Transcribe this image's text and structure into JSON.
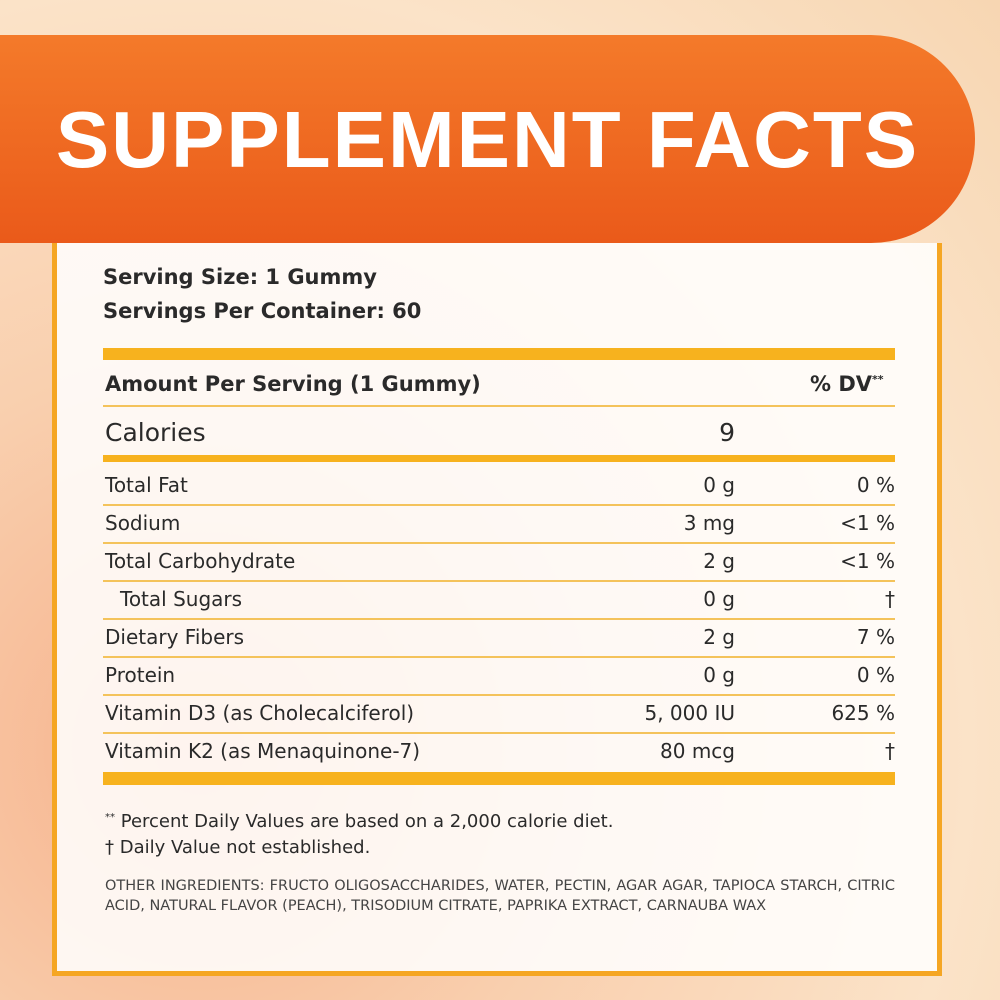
{
  "header": {
    "title": "SUPPLEMENT FACTS"
  },
  "serving": {
    "size": "Serving Size: 1 Gummy",
    "per_container": "Servings Per Container: 60"
  },
  "table": {
    "amount_header": "Amount Per Serving (1 Gummy)",
    "dv_header": "% DV",
    "dv_marker": "**",
    "calories": {
      "label": "Calories",
      "value": "9"
    },
    "rows": [
      [
        "Total Fat",
        "0 g",
        "0 %"
      ],
      [
        "Sodium",
        "3 mg",
        "<1 %"
      ],
      [
        "Total Carbohydrate",
        "2 g",
        "<1 %"
      ],
      [
        "Total Sugars",
        "0 g",
        "†"
      ],
      [
        "Dietary Fibers",
        "2 g",
        "7 %"
      ],
      [
        "Protein",
        "0 g",
        "0 %"
      ],
      [
        "Vitamin D3 (as Cholecalciferol)",
        "5, 000 IU",
        "625 %"
      ],
      [
        "Vitamin K2 (as Menaquinone-7)",
        "80 mcg",
        "†"
      ]
    ]
  },
  "footnotes": {
    "marker": "**",
    "daily_values": "Percent Daily Values are based on a 2,000 calorie diet.",
    "not_established": "† Daily Value not established."
  },
  "ingredients": {
    "label": "OTHER INGREDIENTS:",
    "text": "FRUCTO OLIGOSACCHARIDES, WATER, PECTIN, AGAR AGAR, TAPIOCA STARCH, CITRIC ACID, NATURAL FLAVOR (PEACH), TRISODIUM CITRATE, PAPRIKA EXTRACT, CARNAUBA WAX"
  }
}
